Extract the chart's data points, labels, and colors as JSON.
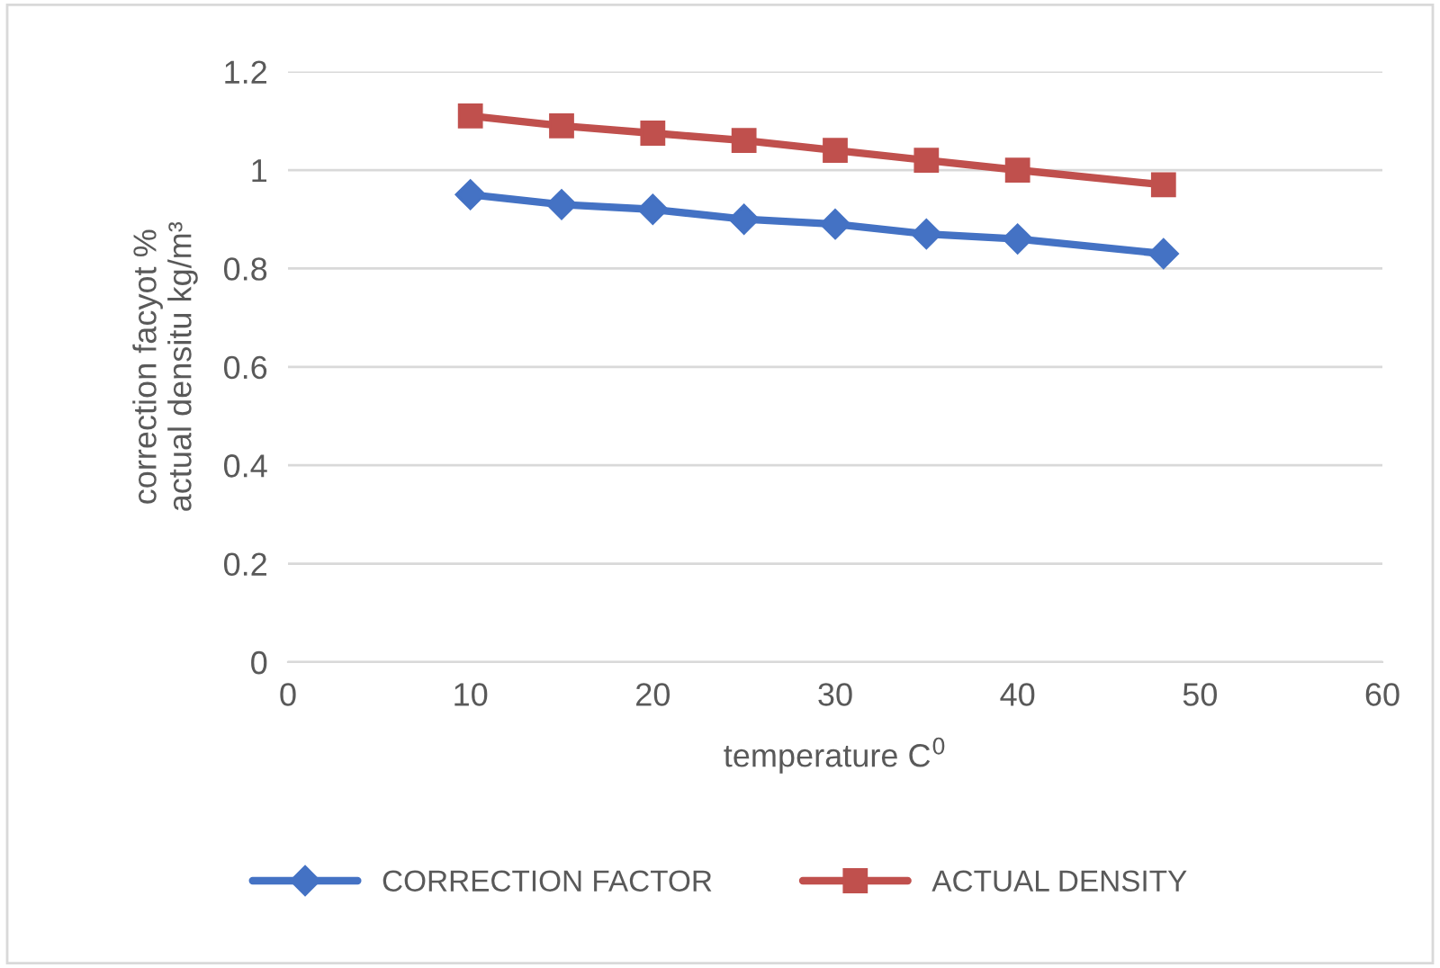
{
  "chart_data": {
    "type": "line",
    "xlabel": "temperature C$^{0}$",
    "ylabel": "correction facyot %\nactual densitu kg/m³",
    "x": [
      10,
      15,
      20,
      25,
      30,
      35,
      40,
      48
    ],
    "series": [
      {
        "name": "CORRECTION FACTOR",
        "color": "#4472c4",
        "marker": "diamond",
        "values": [
          0.95,
          0.93,
          0.92,
          0.9,
          0.89,
          0.87,
          0.86,
          0.83
        ]
      },
      {
        "name": "ACTUAL DENSITY",
        "color": "#c0504d",
        "marker": "square",
        "values": [
          1.11,
          1.09,
          1.075,
          1.06,
          1.04,
          1.02,
          1.0,
          0.97
        ]
      }
    ],
    "xlim": [
      0,
      60
    ],
    "xticks": [
      0,
      10,
      20,
      30,
      40,
      50,
      60
    ],
    "ylim": [
      0,
      1.2
    ],
    "yticks": [
      0,
      {
        "value": 0.2,
        "label": "0.2"
      },
      {
        "value": 0.4,
        "label": "0.4"
      },
      {
        "value": 0.6,
        "label": "0.6"
      },
      {
        "value": 0.8,
        "label": "0.8"
      },
      1,
      {
        "value": 1.2,
        "label": "1.2"
      }
    ],
    "grid": "y",
    "legend": "bottom",
    "line_style": "solid"
  }
}
